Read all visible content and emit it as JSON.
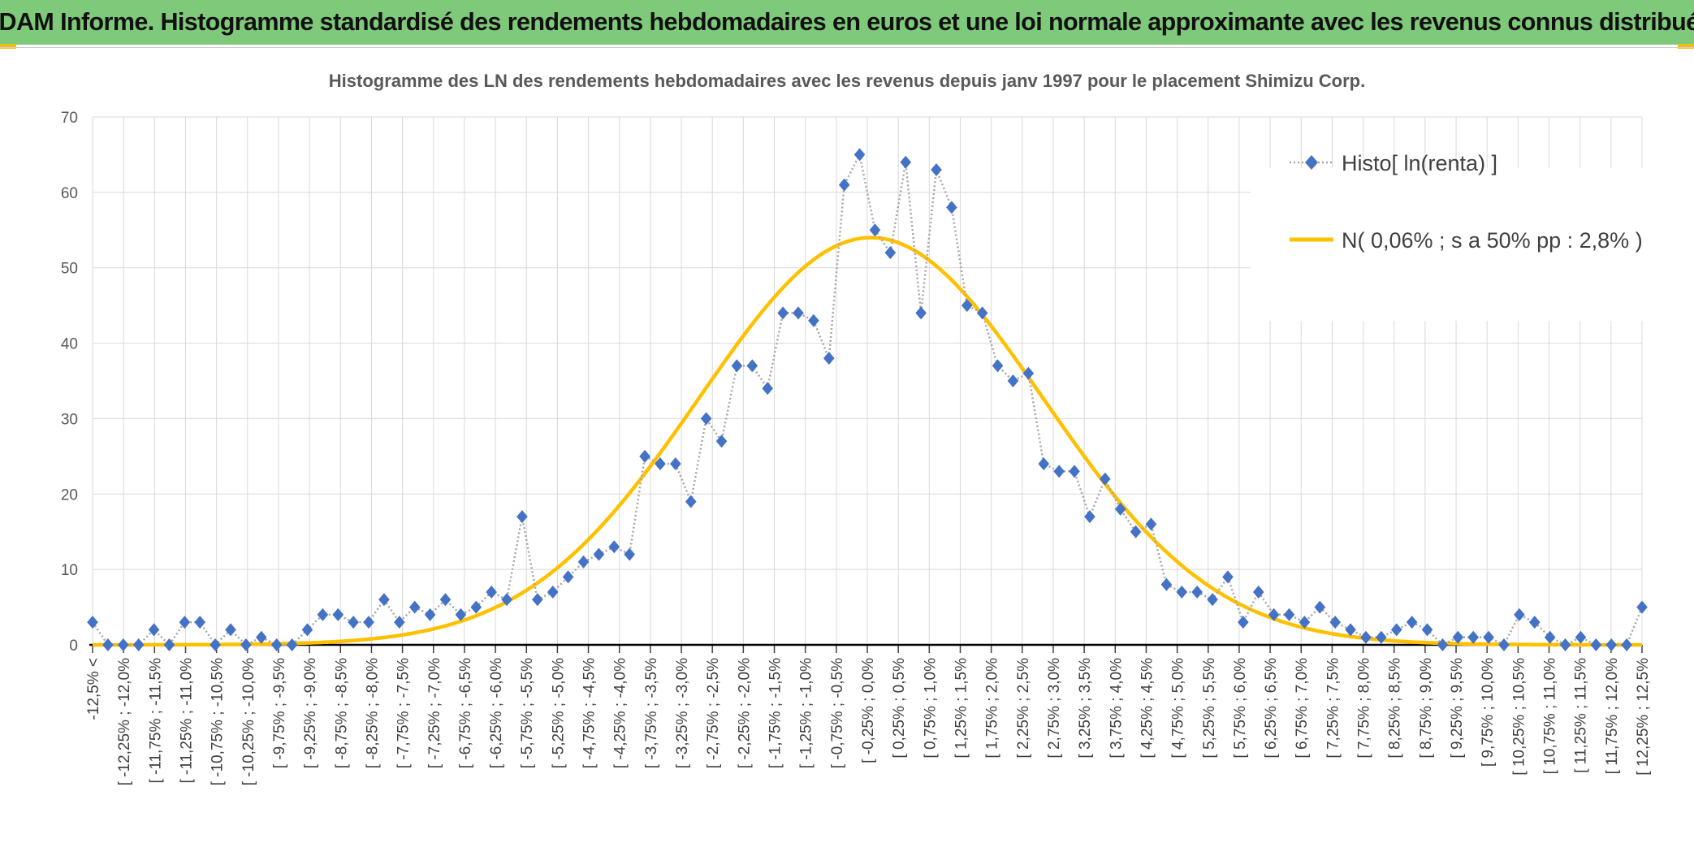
{
  "header": {
    "banner_title": "ADAM Informe. Histogramme standardisé des rendements hebdomadaires en euros et une loi normale approximante avec les revenus connus distribués"
  },
  "colors": {
    "banner_bg": "#7fc97a",
    "accent_yellow": "#f2bb11",
    "marker_blue": "#4472c4",
    "dotted_line": "#a6a6a6",
    "normal_curve": "#ffc000",
    "grid": "#d9d9d9"
  },
  "chart_data": {
    "type": "line",
    "title": "Histogramme des LN des rendements hebdomadaires avec les revenus depuis janv 1997 pour le placement Shimizu Corp.",
    "xlabel": "",
    "ylabel": "",
    "ylim": [
      0,
      70
    ],
    "yticks": [
      0,
      10,
      20,
      30,
      40,
      50,
      60,
      70
    ],
    "grid": true,
    "legend_position": "top-right",
    "x_tick_labels": [
      "-12,5% <",
      "[ -12,25% ; -12,0%",
      "[ -11,75% ; -11,5%",
      "[ -11,25% ; -11,0%",
      "[ -10,75% ; -10,5%",
      "[ -10,25% ; -10,0%",
      "[ -9,75% ; -9,5%",
      "[ -9,25% ; -9,0%",
      "[ -8,75% ; -8,5%",
      "[ -8,25% ; -8,0%",
      "[ -7,75% ; -7,5%",
      "[ -7,25% ; -7,0%",
      "[ -6,75% ; -6,5%",
      "[ -6,25% ; -6,0%",
      "[ -5,75% ; -5,5%",
      "[ -5,25% ; -5,0%",
      "[ -4,75% ; -4,5%",
      "[ -4,25% ; -4,0%",
      "[ -3,75% ; -3,5%",
      "[ -3,25% ; -3,0%",
      "[ -2,75% ; -2,5%",
      "[ -2,25% ; -2,0%",
      "[ -1,75% ; -1,5%",
      "[ -1,25% ; -1,0%",
      "[ -0,75% ; -0,5%",
      "[ -0,25% ; 0,0%",
      "[ 0,25% ; 0,5%",
      "[ 0,75% ; 1,0%",
      "[ 1,25% ; 1,5%",
      "[ 1,75% ; 2,0%",
      "[ 2,25% ; 2,5%",
      "[ 2,75% ; 3,0%",
      "[ 3,25% ; 3,5%",
      "[ 3,75% ; 4,0%",
      "[ 4,25% ; 4,5%",
      "[ 4,75% ; 5,0%",
      "[ 5,25% ; 5,5%",
      "[ 5,75% ; 6,0%",
      "[ 6,25% ; 6,5%",
      "[ 6,75% ; 7,0%",
      "[ 7,25% ; 7,5%",
      "[ 7,75% ; 8,0%",
      "[ 8,25% ; 8,5%",
      "[ 8,75% ; 9,0%",
      "[ 9,25% ; 9,5%",
      "[ 9,75% ; 10,0%",
      "[ 10,25% ; 10,5%",
      "[ 10,75% ; 11,0%",
      "[ 11,25% ; 11,5%",
      "[ 11,75% ; 12,0%",
      "[ 12,25% ; 12,5%"
    ],
    "series": [
      {
        "name": "Histo[ ln(renta) ]",
        "style": "dotted-line-diamond-markers",
        "values": [
          3,
          0,
          0,
          0,
          2,
          0,
          3,
          3,
          0,
          2,
          0,
          1,
          0,
          0,
          2,
          4,
          4,
          3,
          3,
          6,
          3,
          5,
          4,
          6,
          4,
          5,
          7,
          6,
          17,
          6,
          7,
          9,
          11,
          12,
          13,
          12,
          25,
          24,
          24,
          19,
          30,
          27,
          37,
          37,
          34,
          44,
          44,
          43,
          38,
          61,
          65,
          55,
          52,
          64,
          44,
          63,
          58,
          45,
          44,
          37,
          35,
          36,
          24,
          23,
          23,
          17,
          22,
          18,
          15,
          16,
          8,
          7,
          7,
          6,
          9,
          3,
          7,
          4,
          4,
          3,
          5,
          3,
          2,
          1,
          1,
          2,
          3,
          2,
          0,
          1,
          1,
          1,
          0,
          4,
          3,
          1,
          0,
          1,
          0,
          0,
          0,
          5
        ]
      },
      {
        "name": "N( 0,06% ; s a 50% pp : 2,8% )",
        "style": "solid-curve",
        "mean_pct": 0.06,
        "sd_pct": 2.8,
        "peak": 54
      }
    ]
  }
}
